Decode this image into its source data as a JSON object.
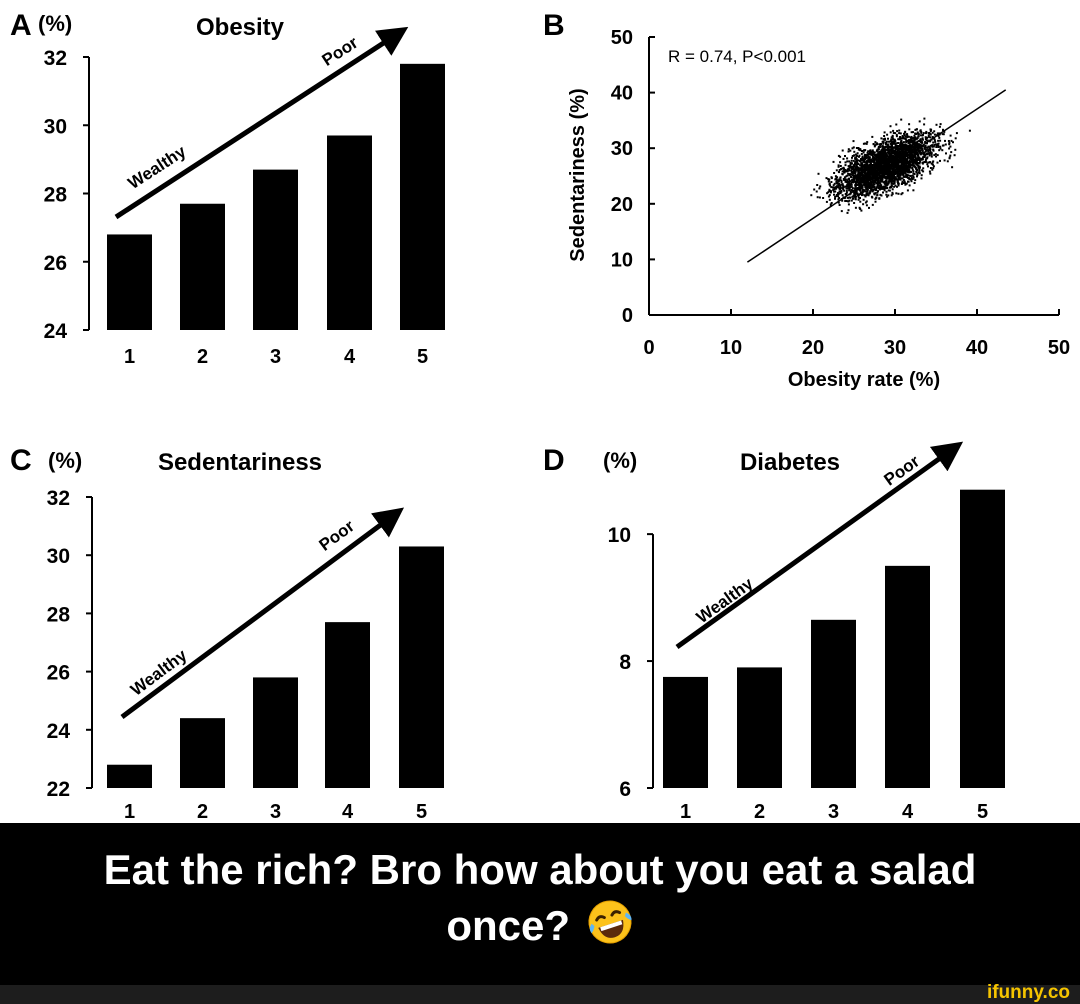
{
  "chart_data": [
    {
      "panel": "A",
      "type": "bar",
      "title": "Obesity",
      "unit_label": "(%)",
      "categories": [
        "1",
        "2",
        "3",
        "4",
        "5"
      ],
      "values": [
        26.8,
        27.7,
        28.7,
        29.7,
        31.8
      ],
      "ylim": [
        24,
        32
      ],
      "yticks": [
        24,
        26,
        28,
        30,
        32
      ],
      "arrow_labels": {
        "start": "Wealthy",
        "end": "Poor"
      }
    },
    {
      "panel": "B",
      "type": "scatter",
      "annotation": "R = 0.74, P<0.001",
      "xlabel": "Obesity rate (%)",
      "ylabel": "Sedentariness (%)",
      "xlim": [
        0,
        50
      ],
      "ylim": [
        0,
        50
      ],
      "xticks": [
        0,
        10,
        20,
        30,
        40,
        50
      ],
      "yticks": [
        0,
        10,
        20,
        30,
        40,
        50
      ],
      "trendline": {
        "from": [
          12,
          9.5
        ],
        "to": [
          43.5,
          40.5
        ]
      },
      "point_cloud": {
        "center": [
          29,
          27
        ],
        "approx_points": 3000
      }
    },
    {
      "panel": "C",
      "type": "bar",
      "title": "Sedentariness",
      "unit_label": "(%)",
      "categories": [
        "1",
        "2",
        "3",
        "4",
        "5"
      ],
      "values": [
        22.8,
        24.4,
        25.8,
        27.7,
        30.3
      ],
      "ylim": [
        22,
        32
      ],
      "yticks": [
        22,
        24,
        26,
        28,
        30,
        32
      ],
      "arrow_labels": {
        "start": "Wealthy",
        "end": "Poor"
      }
    },
    {
      "panel": "D",
      "type": "bar",
      "title": "Diabetes",
      "unit_label": "(%)",
      "categories": [
        "1",
        "2",
        "3",
        "4",
        "5"
      ],
      "values": [
        7.75,
        7.9,
        8.65,
        9.5,
        10.7
      ],
      "ylim": [
        6,
        10.9
      ],
      "yticks": [
        6,
        8,
        10
      ],
      "arrow_labels": {
        "start": "Wealthy",
        "end": "Poor"
      }
    }
  ],
  "caption": {
    "line1": "Eat the rich? Bro how about you eat a salad",
    "line2": "once?",
    "emoji_icon": "rofl-emoji-icon"
  },
  "brand": "ifunny.co",
  "colors": {
    "ink": "#000000",
    "caption_bg": "#000000",
    "caption_text": "#ffffff",
    "brand": "#f5c400"
  }
}
